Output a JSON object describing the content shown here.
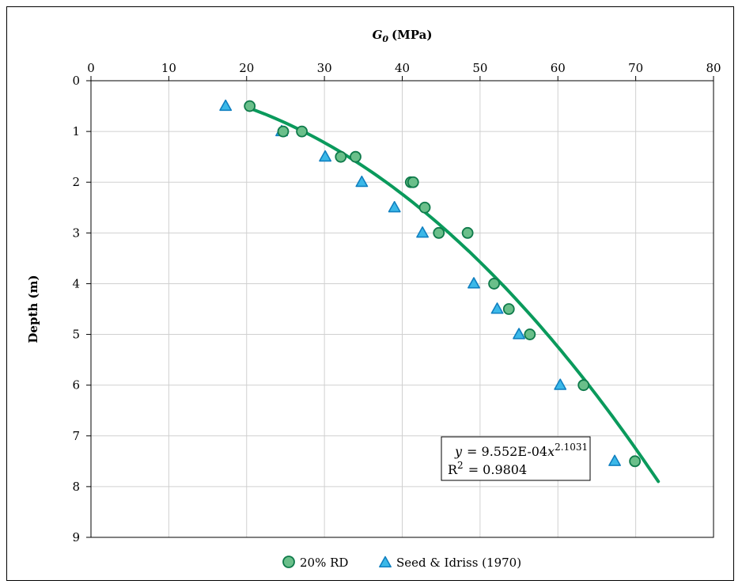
{
  "chart_data": {
    "type": "scatter",
    "title": "",
    "x_axis": {
      "label": "G",
      "label_sub": "0",
      "label_unit": "(MPa)",
      "position": "top",
      "range": [
        0,
        80
      ],
      "ticks": [
        0,
        10,
        20,
        30,
        40,
        50,
        60,
        70,
        80
      ]
    },
    "y_axis": {
      "label": "Depth (m)",
      "range": [
        0,
        9
      ],
      "inverted": true,
      "ticks": [
        0,
        1,
        2,
        3,
        4,
        5,
        6,
        7,
        8,
        9
      ]
    },
    "grid": true,
    "legend": {
      "placement": "bottom"
    },
    "series": [
      {
        "name": "20% RD",
        "marker": "circle",
        "color": "#6abf8a",
        "edge_color": "#0e7a4a",
        "points": [
          [
            20.4,
            0.5
          ],
          [
            24.7,
            1.0
          ],
          [
            27.1,
            1.0
          ],
          [
            32.1,
            1.5
          ],
          [
            34.0,
            1.5
          ],
          [
            41.1,
            2.0
          ],
          [
            41.4,
            2.0
          ],
          [
            42.9,
            2.5
          ],
          [
            44.7,
            3.0
          ],
          [
            48.4,
            3.0
          ],
          [
            51.8,
            4.0
          ],
          [
            53.7,
            4.5
          ],
          [
            56.4,
            5.0
          ],
          [
            63.3,
            6.0
          ],
          [
            69.9,
            7.5
          ]
        ]
      },
      {
        "name": "Seed & Idriss (1970)",
        "marker": "triangle",
        "color": "#3bb8e8",
        "edge_color": "#1080c0",
        "points": [
          [
            17.3,
            0.5
          ],
          [
            24.5,
            1.0
          ],
          [
            30.1,
            1.5
          ],
          [
            34.8,
            2.0
          ],
          [
            39.0,
            2.5
          ],
          [
            42.6,
            3.0
          ],
          [
            49.2,
            4.0
          ],
          [
            52.2,
            4.5
          ],
          [
            55.0,
            5.0
          ],
          [
            60.3,
            6.0
          ],
          [
            67.3,
            7.5
          ]
        ]
      }
    ],
    "trendline": {
      "color": "#0a9a5c",
      "coefficient": 0.0009552,
      "exponent": 2.1031,
      "x_range": [
        20.4,
        72.9
      ],
      "equation": {
        "y": "y",
        "eq": "= 9.552E-04",
        "x": "x",
        "exp": "2.1031"
      },
      "r2": {
        "label": "R",
        "sup": "2",
        "value": "= 0.9804"
      }
    }
  }
}
